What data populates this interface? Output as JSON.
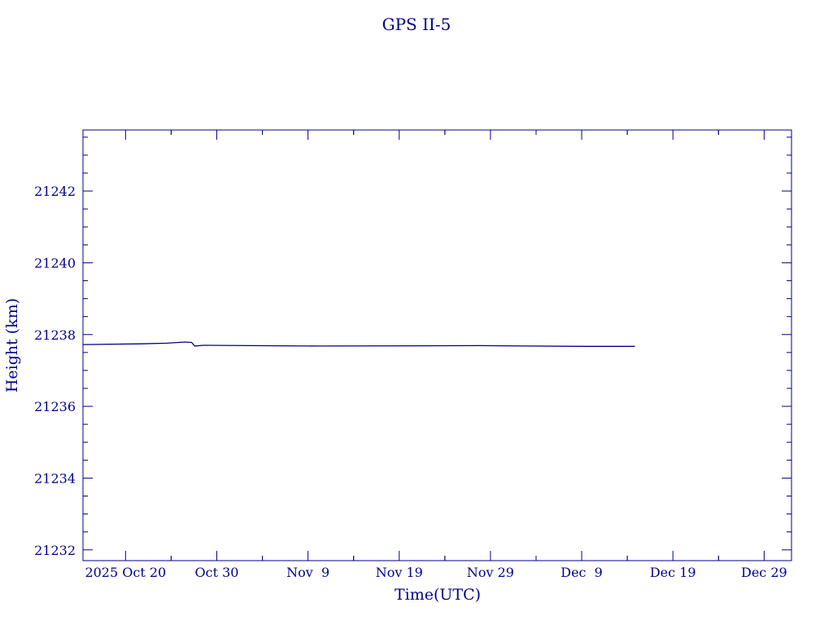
{
  "chart_data": {
    "type": "line",
    "title": "GPS II-5",
    "xlabel": "Time(UTC)",
    "ylabel": "Height (km)",
    "x_tick_labels": [
      "2025 Oct 20",
      "Oct 30",
      "Nov  9",
      "Nov 19",
      "Nov 29",
      "Dec  9",
      "Dec 19",
      "Dec 29"
    ],
    "x_tick_dates": [
      "2025-10-20",
      "2025-10-30",
      "2025-11-09",
      "2025-11-19",
      "2025-11-29",
      "2025-12-09",
      "2025-12-19",
      "2025-12-29"
    ],
    "xlim": [
      "2025-10-15T08:00",
      "2026-01-01T00:00"
    ],
    "y_tick_labels": [
      "21242",
      "21240",
      "21238",
      "21236",
      "21234",
      "21232"
    ],
    "y_ticks": [
      21242,
      21240,
      21238,
      21236,
      21234,
      21232
    ],
    "ylim": [
      21231.7,
      21243.7
    ],
    "grid": false,
    "line_color": "#00008b",
    "series": [
      {
        "x": [
          "2025-10-15T08:00",
          "2025-10-21T14:00",
          "2025-10-24T12:00",
          "2025-10-26T12:00",
          "2025-10-27T06:00",
          "2025-10-27T14:00",
          "2025-10-28T12:00",
          "2025-11-10T04:00",
          "2025-11-27T20:00",
          "2025-12-09T00:00",
          "2025-12-14T20:00"
        ],
        "y": [
          21237.72,
          21237.74,
          21237.76,
          21237.79,
          21237.78,
          21237.68,
          21237.7,
          21237.68,
          21237.69,
          21237.67,
          21237.67
        ]
      }
    ]
  }
}
